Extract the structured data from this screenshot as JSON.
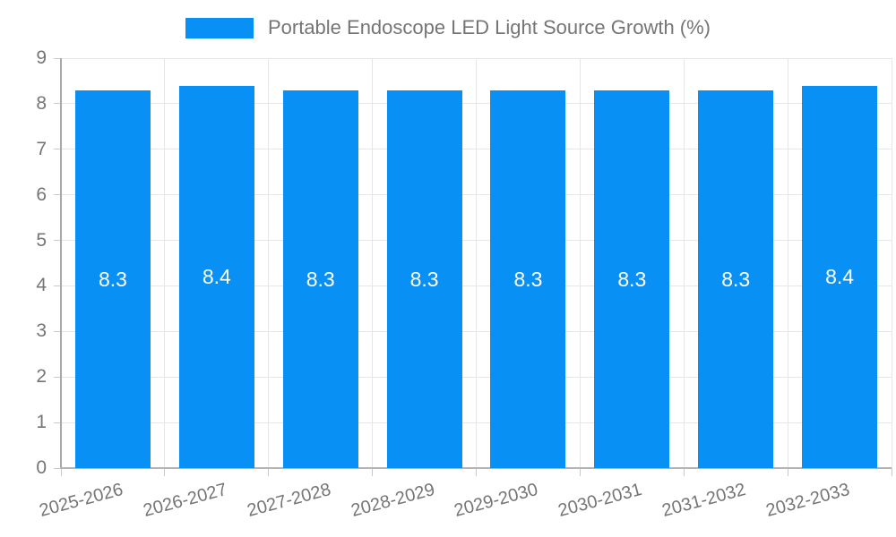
{
  "legend": {
    "label": "Portable Endoscope LED Light Source Growth (%)"
  },
  "colors": {
    "bar": "#0990f5",
    "grid": "#e6e6e6",
    "axis": "#b3b3b3",
    "tick_text": "#757575",
    "value_label_text": "#ffffff"
  },
  "chart_data": {
    "type": "bar",
    "title": "Portable Endoscope LED Light Source Growth (%)",
    "categories": [
      "2025-2026",
      "2026-2027",
      "2027-2028",
      "2028-2029",
      "2029-2030",
      "2030-2031",
      "2031-2032",
      "2032-2033"
    ],
    "series": [
      {
        "name": "Portable Endoscope LED Light Source Growth (%)",
        "values": [
          8.3,
          8.4,
          8.3,
          8.3,
          8.3,
          8.3,
          8.3,
          8.4
        ]
      }
    ],
    "xlabel": "",
    "ylabel": "",
    "ylim": [
      0,
      9
    ],
    "ytick_step": 1,
    "grid": true,
    "legend_position": "top",
    "value_label_decimals": 1
  }
}
